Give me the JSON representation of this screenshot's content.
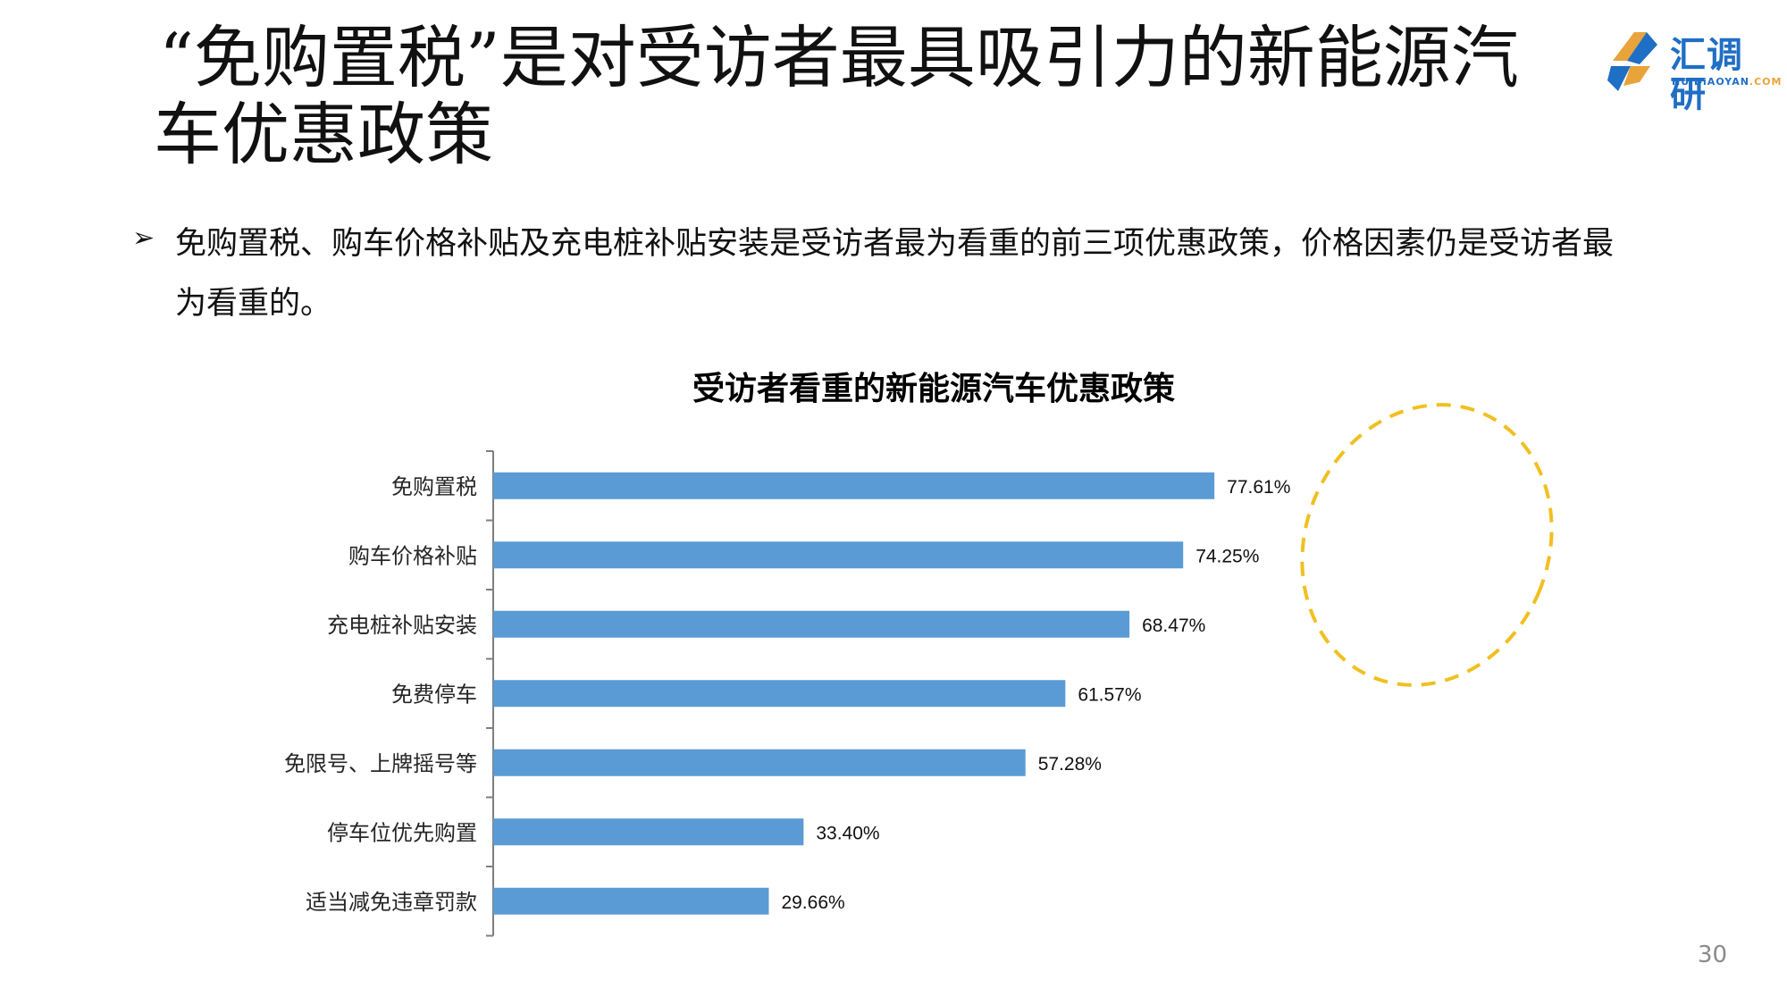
{
  "slide": {
    "title_line1": "“免购置税”是对受访者最具吸引力的新能源汽",
    "title_line2": "车优惠政策",
    "bullet_marker": "➢",
    "bullet_text": "免购置税、购车价格补贴及充电桩补贴安装是受访者最为看重的前三项优惠政策，价格因素仍是受访者最为看重的。",
    "page_number": "30"
  },
  "logo": {
    "name": "汇调研",
    "domain_main": "HUiDiAOYAN",
    "domain_suffix": ".COM",
    "colors": {
      "blue": "#1f6fc4",
      "orange": "#e8a33a"
    }
  },
  "chart_data": {
    "type": "bar",
    "orientation": "horizontal",
    "title": "受访者看重的新能源汽车优惠政策",
    "categories": [
      "免购置税",
      "购车价格补贴",
      "充电桩补贴安装",
      "免费停车",
      "免限号、上牌摇号等",
      "停车位优先购置",
      "适当减免违章罚款"
    ],
    "values": [
      77.61,
      74.25,
      68.47,
      61.57,
      57.28,
      33.4,
      29.66
    ],
    "labels": [
      "77.61%",
      "74.25%",
      "68.47%",
      "61.57%",
      "57.28%",
      "33.40%",
      "29.66%"
    ],
    "unit": "%",
    "xlim": [
      0,
      100
    ],
    "bar_color": "#5b9bd5",
    "highlight": {
      "top_n": 3,
      "style": "dashed-ellipse",
      "color": "#f0c020"
    },
    "grid": false
  }
}
